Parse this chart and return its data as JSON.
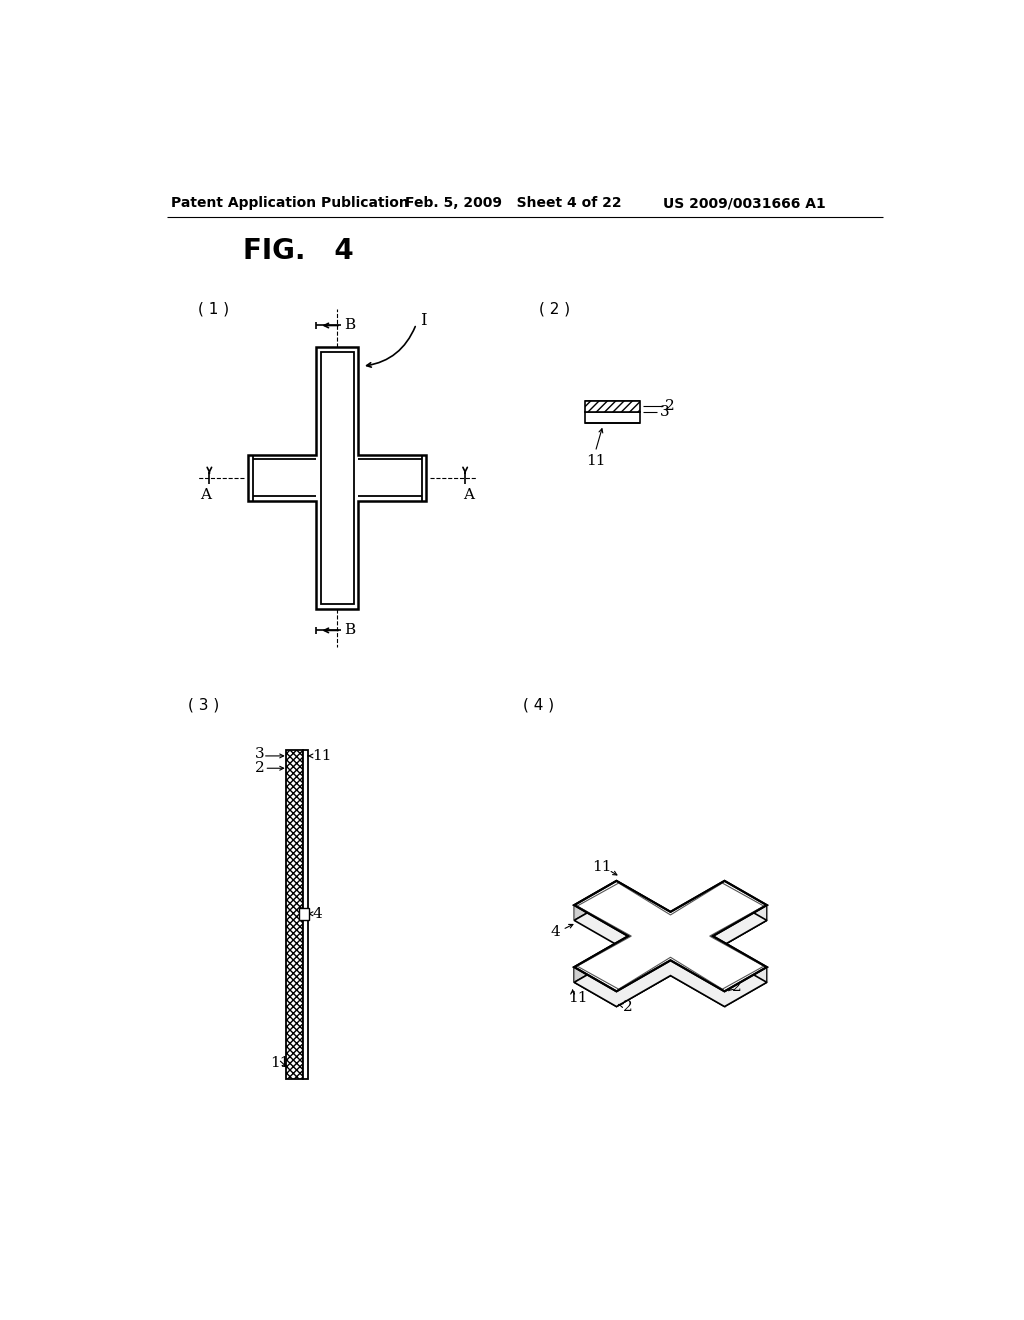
{
  "bg_color": "#ffffff",
  "header_left": "Patent Application Publication",
  "header_mid": "Feb. 5, 2009   Sheet 4 of 22",
  "header_right": "US 2009/0031666 A1",
  "fig_title": "FIG.   4",
  "line_color": "#000000"
}
